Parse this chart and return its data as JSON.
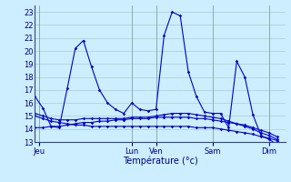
{
  "title": "Température (°c)",
  "bg_color": "#cceeff",
  "grid_color": "#aacccc",
  "line_color": "#0000cc",
  "xlim": [
    0,
    31
  ],
  "ylim": [
    13,
    23.5
  ],
  "yticks": [
    13,
    14,
    15,
    16,
    17,
    18,
    19,
    20,
    21,
    22,
    23
  ],
  "xtick_labels": [
    "Jeu",
    "Lun",
    "Ven",
    "Sam",
    "Dim"
  ],
  "xtick_positions": [
    0.5,
    12,
    15,
    22,
    29
  ],
  "series": [
    [
      16.5,
      15.6,
      14.2,
      14.1,
      17.1,
      20.2,
      20.8,
      18.8,
      17.0,
      16.0,
      15.5,
      15.2,
      16.0,
      15.5,
      15.4,
      15.5,
      21.2,
      23.0,
      22.7,
      18.4,
      16.5,
      15.3,
      15.2,
      15.2,
      14.1,
      19.2,
      18.0,
      15.1,
      13.5,
      13.2,
      12.8
    ],
    [
      14.1,
      14.1,
      14.2,
      14.2,
      14.3,
      14.4,
      14.5,
      14.5,
      14.6,
      14.6,
      14.7,
      14.7,
      14.8,
      14.8,
      14.8,
      14.9,
      14.9,
      14.9,
      14.9,
      14.9,
      14.8,
      14.8,
      14.7,
      14.6,
      14.5,
      14.4,
      14.3,
      14.1,
      13.9,
      13.7,
      13.4
    ],
    [
      15.0,
      14.8,
      14.6,
      14.5,
      14.4,
      14.3,
      14.3,
      14.2,
      14.2,
      14.2,
      14.2,
      14.2,
      14.2,
      14.2,
      14.2,
      14.2,
      14.2,
      14.2,
      14.2,
      14.2,
      14.1,
      14.1,
      14.1,
      14.0,
      13.9,
      13.8,
      13.7,
      13.6,
      13.4,
      13.3,
      13.1
    ],
    [
      15.2,
      15.0,
      14.8,
      14.7,
      14.7,
      14.7,
      14.8,
      14.8,
      14.8,
      14.8,
      14.8,
      14.8,
      14.9,
      14.9,
      14.9,
      15.0,
      15.1,
      15.2,
      15.2,
      15.2,
      15.1,
      15.0,
      14.9,
      14.8,
      14.6,
      14.4,
      14.2,
      14.0,
      13.7,
      13.5,
      13.2
    ]
  ]
}
